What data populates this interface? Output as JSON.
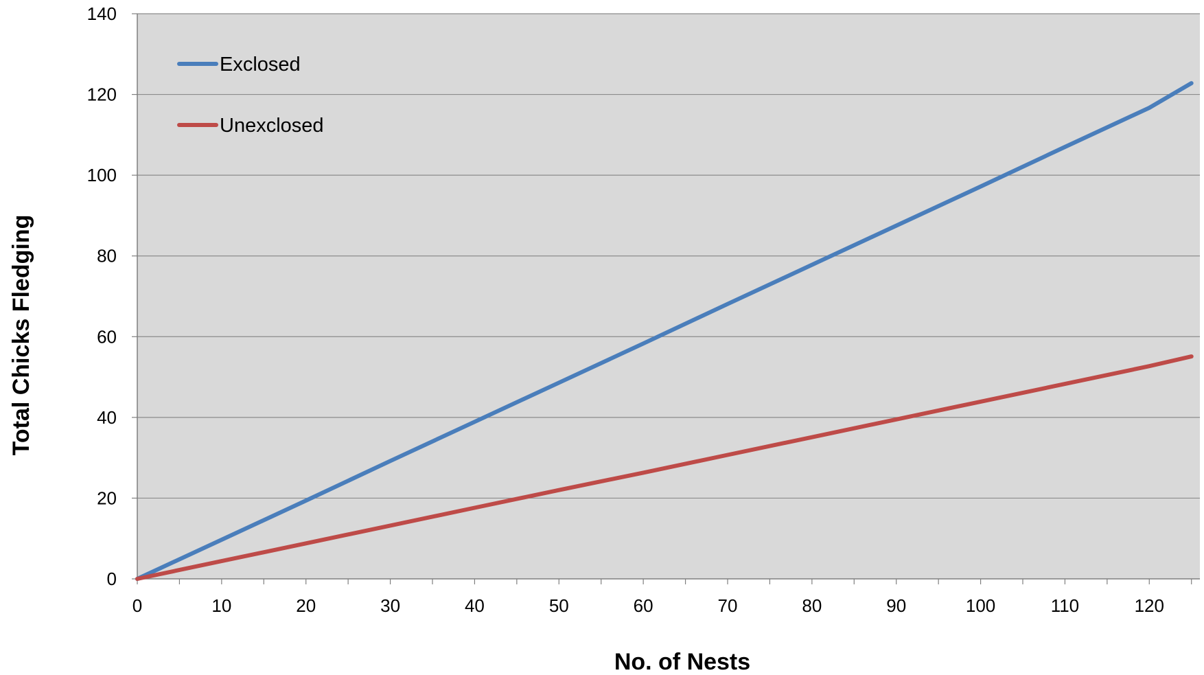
{
  "chart_data": {
    "type": "line",
    "title": "",
    "xlabel": "No. of Nests",
    "ylabel": "Total Chicks Fledging",
    "xlim": [
      0,
      126
    ],
    "ylim": [
      0,
      140
    ],
    "x_ticks": [
      0,
      10,
      20,
      30,
      40,
      50,
      60,
      70,
      80,
      90,
      100,
      110,
      120
    ],
    "y_ticks": [
      0,
      20,
      40,
      60,
      80,
      100,
      120,
      140
    ],
    "grid": "horizontal",
    "legend_position": "top-left",
    "plot_background": "#d9d9d9",
    "series": [
      {
        "name": "Exclosed",
        "color": "#4a7ebb",
        "x": [
          0,
          10,
          20,
          30,
          40,
          50,
          60,
          70,
          80,
          90,
          100,
          110,
          120,
          125
        ],
        "y": [
          0,
          9.7,
          19.4,
          29.2,
          38.9,
          48.6,
          58.3,
          68.1,
          77.8,
          87.5,
          97.2,
          107.0,
          116.7,
          122.8
        ]
      },
      {
        "name": "Unexclosed",
        "color": "#be4b48",
        "x": [
          0,
          10,
          20,
          30,
          40,
          50,
          60,
          70,
          80,
          90,
          100,
          110,
          120,
          125
        ],
        "y": [
          0,
          4.4,
          8.8,
          13.2,
          17.6,
          22.0,
          26.3,
          30.7,
          35.1,
          39.5,
          43.9,
          48.3,
          52.7,
          55.1
        ]
      }
    ]
  }
}
